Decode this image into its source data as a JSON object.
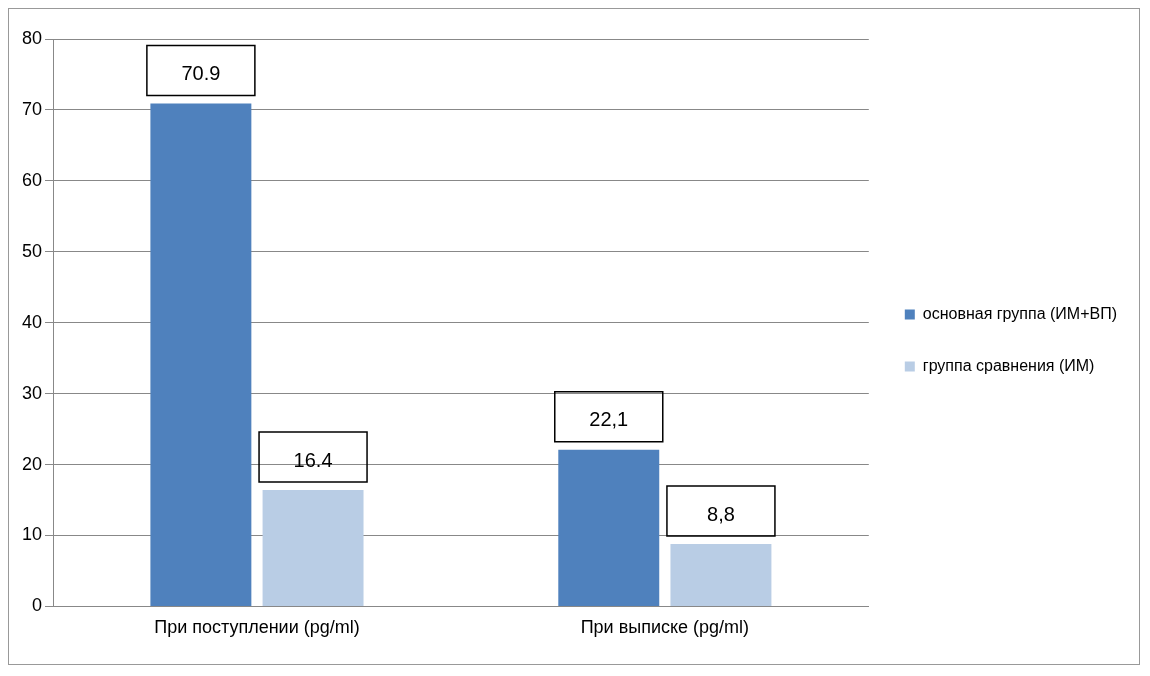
{
  "chart_data": {
    "type": "bar",
    "categories": [
      "При поступлении (pg/ml)",
      "При выписке (pg/ml)"
    ],
    "series": [
      {
        "name": "основная группа (ИМ+ВП)",
        "color": "#4f81bd",
        "values": [
          70.9,
          22.1
        ],
        "value_labels": [
          "70.9",
          "22,1"
        ]
      },
      {
        "name": "группа сравнения (ИМ)",
        "color": "#b9cde5",
        "values": [
          16.4,
          8.8
        ],
        "value_labels": [
          "16.4",
          "8,8"
        ]
      }
    ],
    "ylim": [
      0,
      80
    ],
    "yticks": [
      0,
      10,
      20,
      30,
      40,
      50,
      60,
      70,
      80
    ],
    "grid": "y",
    "legend": "right"
  }
}
